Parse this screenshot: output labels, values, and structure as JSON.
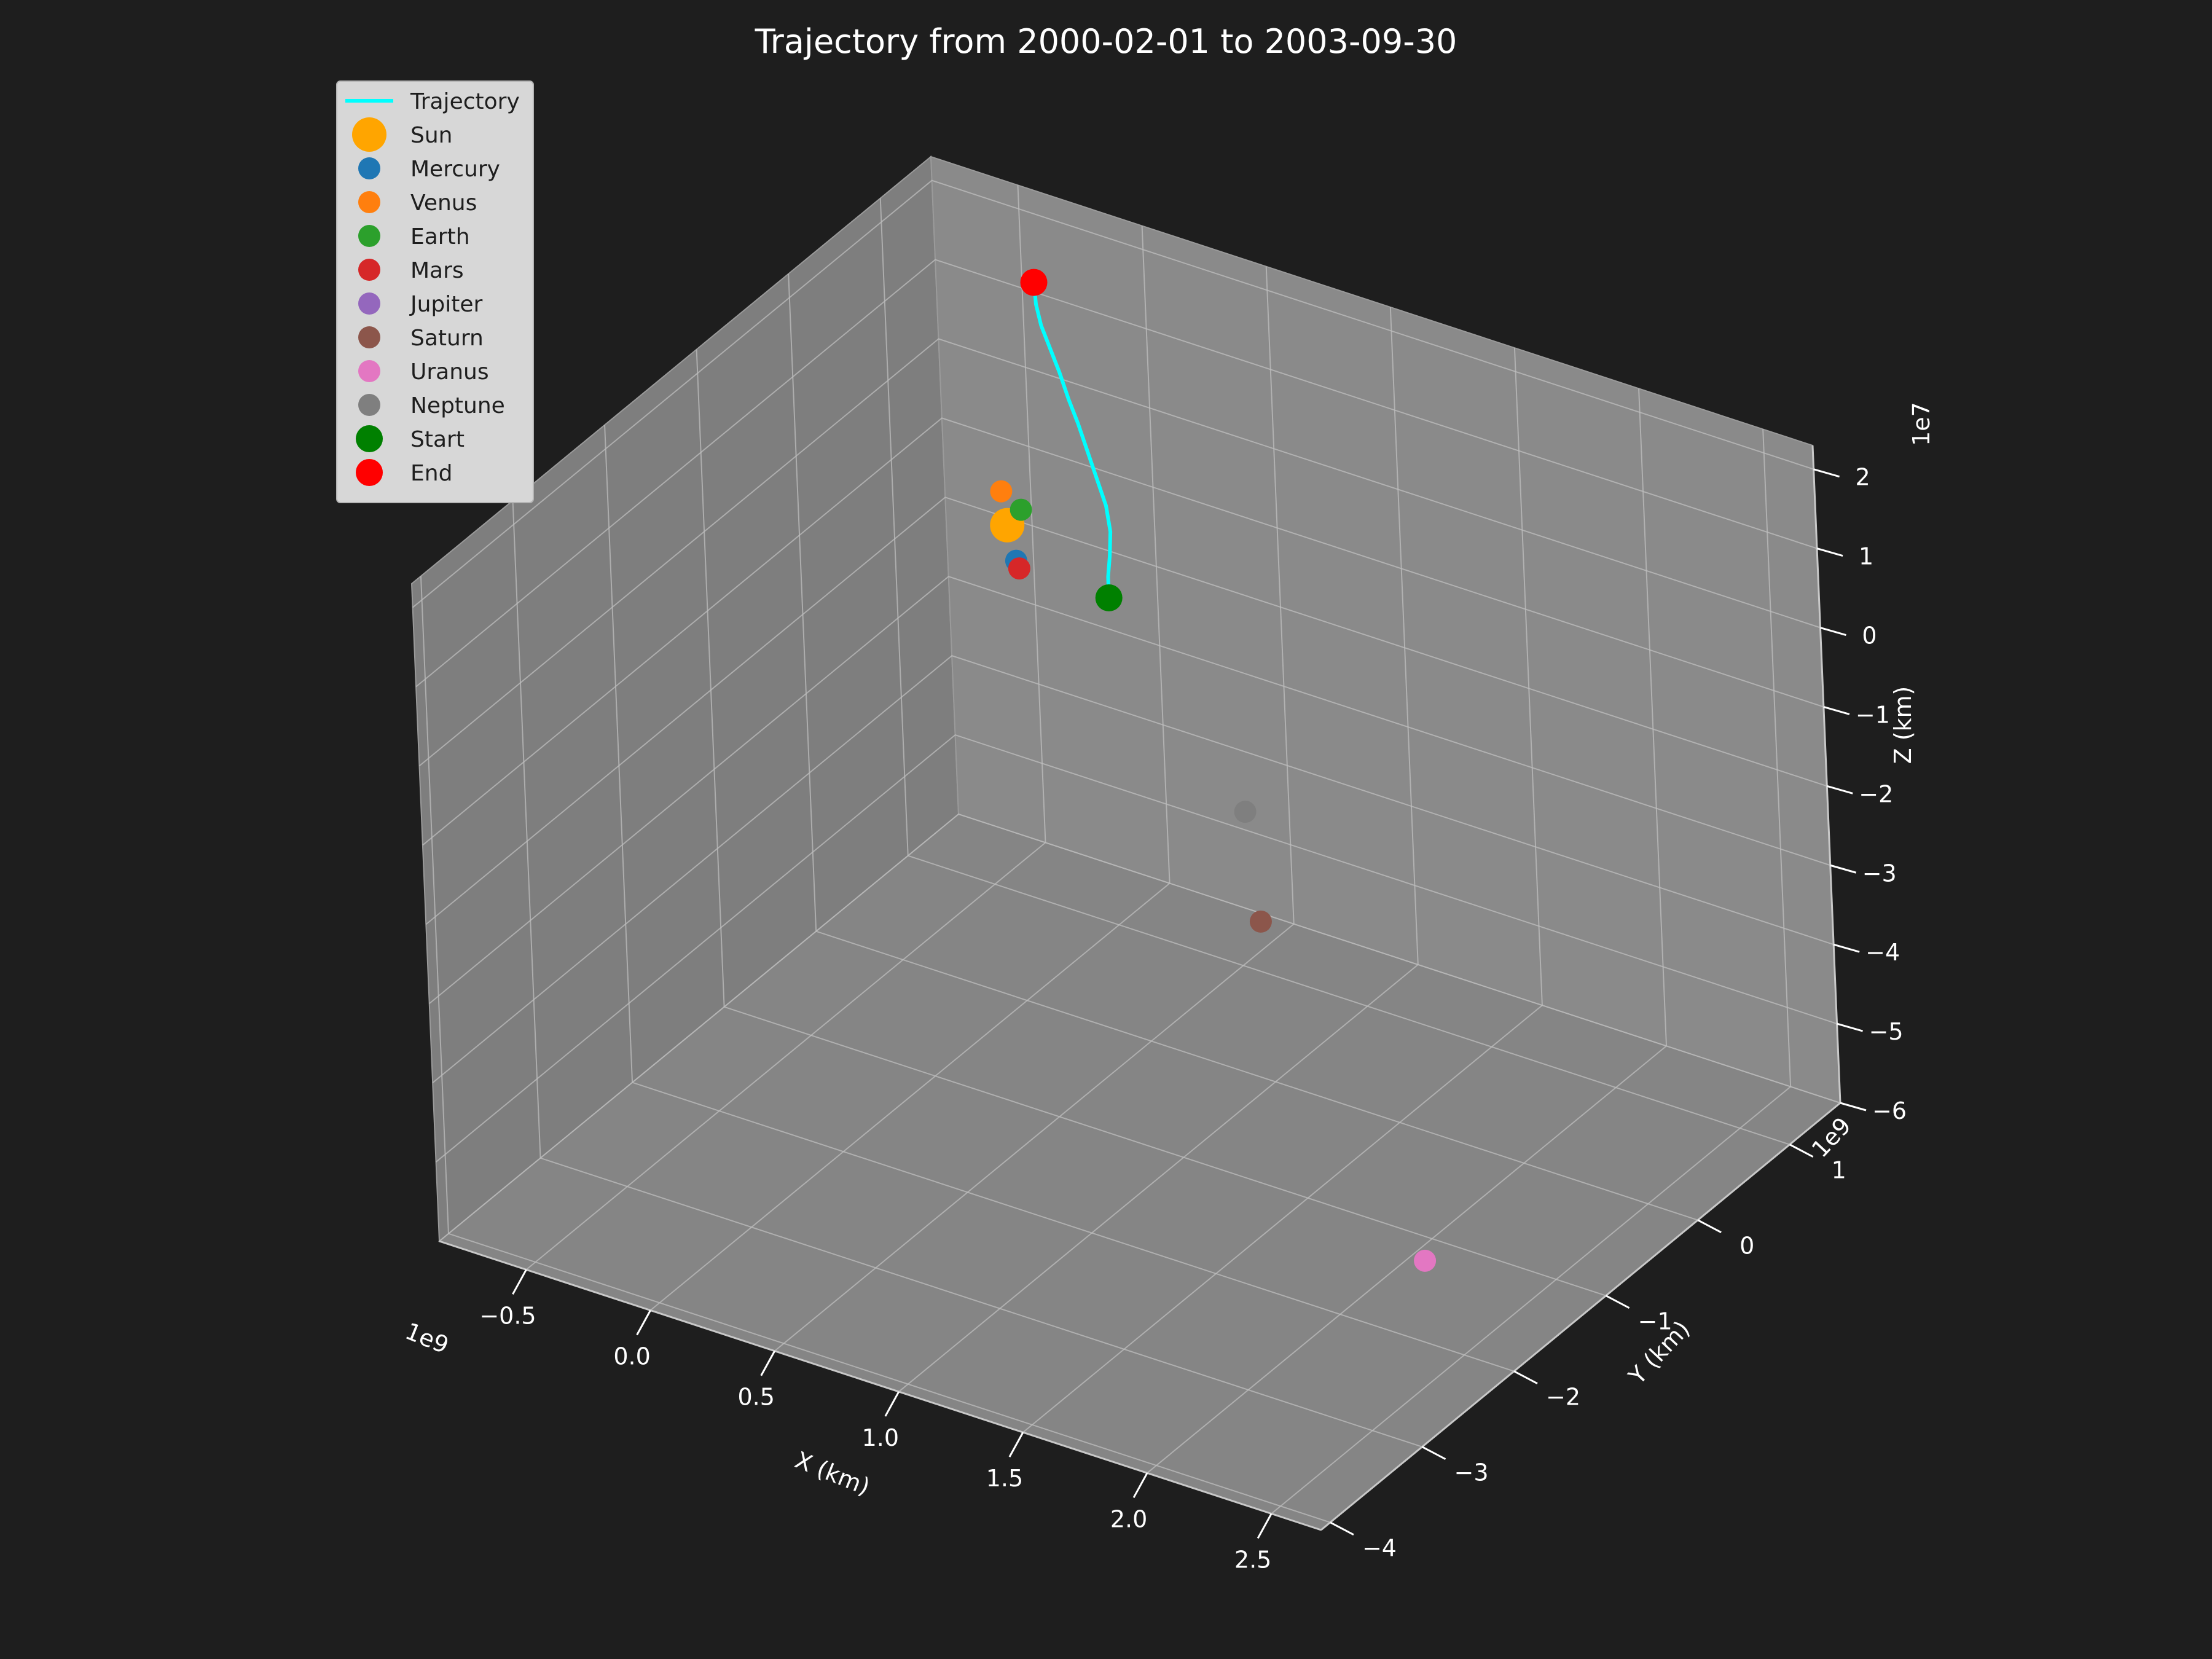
{
  "chart_data": {
    "type": "scatter",
    "subtype": "3d-line-scatter",
    "title": "Trajectory from 2000-02-01 to 2003-09-30",
    "xlabel": "X (km)",
    "ylabel": "Y (km)",
    "zlabel": "Z (km)",
    "x_offset_text": "1e9",
    "y_offset_text": "1e9",
    "z_offset_text": "1e7",
    "x_scale": 1000000000,
    "y_scale": 1000000000,
    "z_scale": 10000000,
    "xlim": [
      -0.85,
      2.7
    ],
    "ylim": [
      -4.1,
      1.55
    ],
    "zlim": [
      -6,
      2.3
    ],
    "x_ticks": [
      {
        "value": -0.5,
        "label": "−0.5"
      },
      {
        "value": 0.0,
        "label": "0.0"
      },
      {
        "value": 0.5,
        "label": "0.5"
      },
      {
        "value": 1.0,
        "label": "1.0"
      },
      {
        "value": 1.5,
        "label": "1.5"
      },
      {
        "value": 2.0,
        "label": "2.0"
      },
      {
        "value": 2.5,
        "label": "2.5"
      }
    ],
    "y_ticks": [
      {
        "value": 1,
        "label": "1"
      },
      {
        "value": 0,
        "label": "0"
      },
      {
        "value": -1,
        "label": "−1"
      },
      {
        "value": -2,
        "label": "−2"
      },
      {
        "value": -3,
        "label": "−3"
      },
      {
        "value": -4,
        "label": "−4"
      }
    ],
    "z_ticks": [
      {
        "value": 2,
        "label": "2"
      },
      {
        "value": 1,
        "label": "1"
      },
      {
        "value": 0,
        "label": "0"
      },
      {
        "value": -1,
        "label": "−1"
      },
      {
        "value": -2,
        "label": "−2"
      },
      {
        "value": -3,
        "label": "−3"
      },
      {
        "value": -4,
        "label": "−4"
      },
      {
        "value": -5,
        "label": "−5"
      },
      {
        "value": -6,
        "label": "−6"
      }
    ],
    "grid": true,
    "legend_position": "top-left",
    "trajectory": {
      "name": "Trajectory",
      "color": "#00ffff",
      "points": [
        [
          0.55,
          -0.38,
          0.01
        ],
        [
          0.5,
          -0.25,
          0.1
        ],
        [
          0.46,
          -0.12,
          0.2
        ],
        [
          0.42,
          0.0,
          0.35
        ],
        [
          0.36,
          0.12,
          0.5
        ],
        [
          0.28,
          0.24,
          0.65
        ],
        [
          0.2,
          0.36,
          0.8
        ],
        [
          0.12,
          0.48,
          0.95
        ],
        [
          0.04,
          0.6,
          1.05
        ],
        [
          -0.04,
          0.72,
          1.2
        ],
        [
          -0.12,
          0.84,
          1.3
        ],
        [
          -0.2,
          0.96,
          1.4
        ],
        [
          -0.26,
          1.07,
          1.5
        ],
        [
          -0.3,
          1.16,
          1.65
        ]
      ]
    },
    "bodies": [
      {
        "name": "Sun",
        "color": "#ffa500",
        "size": 28,
        "x": 0.0,
        "y": 0.0,
        "z": 0.0
      },
      {
        "name": "Mercury",
        "color": "#1f77b4",
        "size": 18,
        "x": 0.05,
        "y": -0.05,
        "z": -0.35
      },
      {
        "name": "Venus",
        "color": "#ff7f0e",
        "size": 18,
        "x": -0.05,
        "y": 0.08,
        "z": 0.3
      },
      {
        "name": "Earth",
        "color": "#2ca02c",
        "size": 18,
        "x": 0.02,
        "y": 0.1,
        "z": 0.12
      },
      {
        "name": "Mars",
        "color": "#d62728",
        "size": 18,
        "x": 0.1,
        "y": -0.15,
        "z": -0.3
      },
      {
        "name": "Jupiter",
        "color": "#9467bd",
        "size": 18,
        "x": null,
        "y": null,
        "z": null
      },
      {
        "name": "Saturn",
        "color": "#8c564b",
        "size": 18,
        "x": 1.2,
        "y": -0.6,
        "z": -3.2
      },
      {
        "name": "Uranus",
        "color": "#e377c2",
        "size": 18,
        "x": 2.2,
        "y": -1.6,
        "z": -5.5
      },
      {
        "name": "Neptune",
        "color": "#7f7f7f",
        "size": 18,
        "x": 1.0,
        "y": -0.2,
        "z": -2.4
      },
      {
        "name": "Start",
        "color": "#008000",
        "size": 22,
        "x": 0.55,
        "y": -0.38,
        "z": 0.01
      },
      {
        "name": "End",
        "color": "#ff0000",
        "size": 22,
        "x": -0.3,
        "y": 1.16,
        "z": 1.65
      }
    ]
  },
  "legend": [
    {
      "label": "Trajectory",
      "kind": "line",
      "color": "#00ffff"
    },
    {
      "label": "Sun",
      "kind": "marker",
      "color": "#ffa500",
      "size": 28
    },
    {
      "label": "Mercury",
      "kind": "marker",
      "color": "#1f77b4",
      "size": 18
    },
    {
      "label": "Venus",
      "kind": "marker",
      "color": "#ff7f0e",
      "size": 18
    },
    {
      "label": "Earth",
      "kind": "marker",
      "color": "#2ca02c",
      "size": 18
    },
    {
      "label": "Mars",
      "kind": "marker",
      "color": "#d62728",
      "size": 18
    },
    {
      "label": "Jupiter",
      "kind": "marker",
      "color": "#9467bd",
      "size": 18
    },
    {
      "label": "Saturn",
      "kind": "marker",
      "color": "#8c564b",
      "size": 18
    },
    {
      "label": "Uranus",
      "kind": "marker",
      "color": "#e377c2",
      "size": 18
    },
    {
      "label": "Neptune",
      "kind": "marker",
      "color": "#7f7f7f",
      "size": 18
    },
    {
      "label": "Start",
      "kind": "marker",
      "color": "#008000",
      "size": 22
    },
    {
      "label": "End",
      "kind": "marker",
      "color": "#ff0000",
      "size": 22
    }
  ],
  "colors": {
    "background": "#1e1e1e",
    "pane": "#888888",
    "grid": "#bdbdbd",
    "text": "#ffffff"
  }
}
